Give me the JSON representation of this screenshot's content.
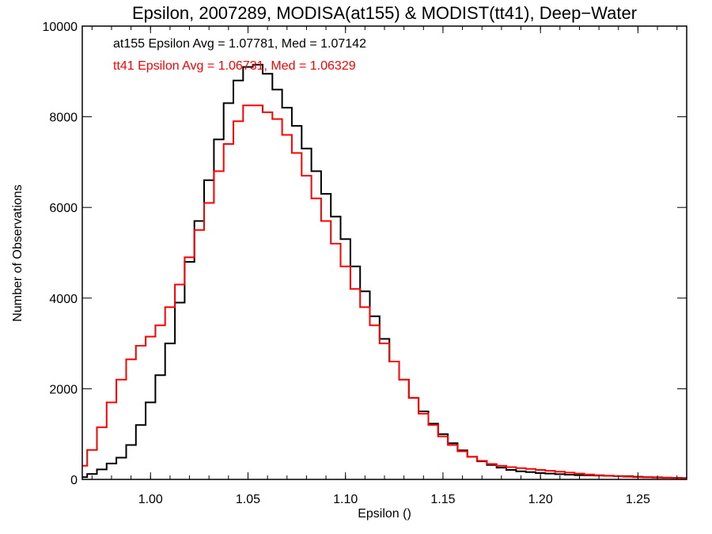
{
  "chart_data": {
    "type": "line",
    "step": true,
    "title": "Epsilon, 2007289, MODISA(at155) & MODIST(tt41), Deep−Water",
    "xlabel": "Epsilon ()",
    "ylabel": "Number of Observations",
    "xlim": [
      0.965,
      1.275
    ],
    "ylim": [
      0,
      10000
    ],
    "x_ticks": [
      1.0,
      1.05,
      1.1,
      1.15,
      1.2,
      1.25
    ],
    "x_tick_labels": [
      "1.00",
      "1.05",
      "1.10",
      "1.15",
      "1.20",
      "1.25"
    ],
    "y_ticks": [
      0,
      2000,
      4000,
      6000,
      8000,
      10000
    ],
    "y_tick_labels": [
      "0",
      "2000",
      "4000",
      "6000",
      "8000",
      "10000"
    ],
    "grid": false,
    "annotations": [
      {
        "text": "at155 Epsilon Avg = 1.07781, Med = 1.07142",
        "color": "#000000"
      },
      {
        "text": "tt41 Epsilon Avg = 1.06731, Med = 1.06329",
        "color": "#ff0000"
      }
    ],
    "series": [
      {
        "color": "#000000",
        "x": [
          0.965,
          0.97,
          0.975,
          0.98,
          0.985,
          0.99,
          0.995,
          1.0,
          1.005,
          1.01,
          1.015,
          1.02,
          1.025,
          1.03,
          1.035,
          1.04,
          1.045,
          1.05,
          1.055,
          1.06,
          1.065,
          1.07,
          1.075,
          1.08,
          1.085,
          1.09,
          1.095,
          1.1,
          1.105,
          1.11,
          1.115,
          1.12,
          1.125,
          1.13,
          1.135,
          1.14,
          1.145,
          1.15,
          1.155,
          1.16,
          1.165,
          1.17,
          1.175,
          1.18,
          1.185,
          1.19,
          1.195,
          1.2,
          1.205,
          1.21,
          1.215,
          1.22,
          1.225,
          1.23,
          1.235,
          1.24,
          1.245,
          1.25,
          1.255,
          1.26,
          1.265,
          1.27,
          1.275
        ],
        "values": [
          50,
          120,
          220,
          350,
          480,
          760,
          1200,
          1700,
          2300,
          3000,
          3900,
          4800,
          5700,
          6600,
          7500,
          8300,
          8800,
          9100,
          9150,
          8950,
          8600,
          8200,
          7800,
          7300,
          6800,
          6300,
          5800,
          5300,
          4700,
          4150,
          3600,
          3100,
          2600,
          2200,
          1800,
          1500,
          1230,
          1000,
          800,
          640,
          500,
          400,
          320,
          260,
          210,
          180,
          160,
          140,
          130,
          115,
          105,
          95,
          90,
          85,
          80,
          75,
          70,
          60,
          50,
          45,
          40,
          35,
          30
        ]
      },
      {
        "color": "#ff0000",
        "x": [
          0.965,
          0.97,
          0.975,
          0.98,
          0.985,
          0.99,
          0.995,
          1.0,
          1.005,
          1.01,
          1.015,
          1.02,
          1.025,
          1.03,
          1.035,
          1.04,
          1.045,
          1.05,
          1.055,
          1.06,
          1.065,
          1.07,
          1.075,
          1.08,
          1.085,
          1.09,
          1.095,
          1.1,
          1.105,
          1.11,
          1.115,
          1.12,
          1.125,
          1.13,
          1.135,
          1.14,
          1.145,
          1.15,
          1.155,
          1.16,
          1.165,
          1.17,
          1.175,
          1.18,
          1.185,
          1.19,
          1.195,
          1.2,
          1.205,
          1.21,
          1.215,
          1.22,
          1.225,
          1.23,
          1.235,
          1.24,
          1.245,
          1.25,
          1.255,
          1.26,
          1.265,
          1.27,
          1.275
        ],
        "values": [
          300,
          650,
          1150,
          1700,
          2200,
          2650,
          2950,
          3150,
          3400,
          3800,
          4300,
          4900,
          5500,
          6100,
          6800,
          7400,
          7900,
          8250,
          8250,
          8100,
          7950,
          7600,
          7200,
          6700,
          6200,
          5700,
          5200,
          4700,
          4200,
          3800,
          3400,
          3000,
          2600,
          2200,
          1800,
          1450,
          1200,
          950,
          760,
          620,
          500,
          410,
          340,
          300,
          270,
          250,
          230,
          210,
          190,
          170,
          150,
          130,
          110,
          95,
          80,
          70,
          60,
          50,
          45,
          40,
          35,
          30,
          25
        ]
      }
    ]
  }
}
